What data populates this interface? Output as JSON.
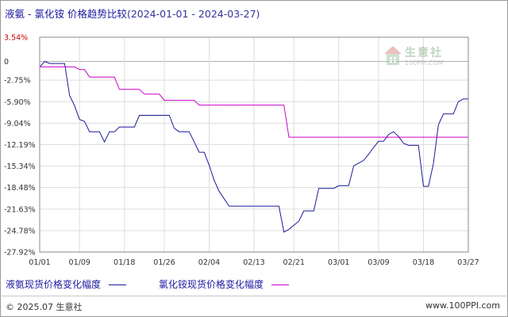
{
  "title": {
    "main": "液氨 - 氯化铵 价格趋势比较",
    "range": "(2024-01-01 - 2024-03-27)"
  },
  "watermark": {
    "text": "生意社",
    "url": "100PPI.COM"
  },
  "footer": {
    "copyright": "© 2025.07 生意社",
    "website": "www.100PPI.com"
  },
  "colors": {
    "series1": "#1a1a9c",
    "series2": "#cc00cc",
    "title": "#1a1aa0",
    "top_tick": "#cc0000"
  },
  "chart_data": {
    "type": "line",
    "title": "液氨 - 氯化铵 价格趋势比较(2024-01-01 - 2024-03-27)",
    "xlabel": "",
    "ylabel": "",
    "x_range": [
      "2024-01-01",
      "2024-03-27"
    ],
    "x_ticks": [
      {
        "date": "2024-01-01",
        "label": "01/01"
      },
      {
        "date": "2024-01-09",
        "label": "01/09"
      },
      {
        "date": "2024-01-18",
        "label": "01/18"
      },
      {
        "date": "2024-01-26",
        "label": "01/26"
      },
      {
        "date": "2024-02-04",
        "label": "02/04"
      },
      {
        "date": "2024-02-13",
        "label": "02/13"
      },
      {
        "date": "2024-02-21",
        "label": "02/21"
      },
      {
        "date": "2024-03-01",
        "label": "03/01"
      },
      {
        "date": "2024-03-09",
        "label": "03/09"
      },
      {
        "date": "2024-03-18",
        "label": "03/18"
      },
      {
        "date": "2024-03-27",
        "label": "03/27"
      }
    ],
    "y_ticks": [
      {
        "value": 3.54,
        "label": "3.54%"
      },
      {
        "value": 0,
        "label": "0"
      },
      {
        "value": -2.75,
        "label": "-2.75%"
      },
      {
        "value": -5.9,
        "label": "-5.90%"
      },
      {
        "value": -9.04,
        "label": "-9.04%"
      },
      {
        "value": -12.19,
        "label": "-12.19%"
      },
      {
        "value": -15.34,
        "label": "-15.34%"
      },
      {
        "value": -18.48,
        "label": "-18.48%"
      },
      {
        "value": -21.63,
        "label": "-21.63%"
      },
      {
        "value": -24.78,
        "label": "-24.78%"
      },
      {
        "value": -27.92,
        "label": "-27.92%"
      }
    ],
    "ylim": [
      -27.92,
      3.54
    ],
    "grid": true,
    "legend_position": "bottom",
    "series": [
      {
        "name": "液氨现货价格变化幅度",
        "color": "#1a1a9c",
        "points": [
          [
            "2024-01-01",
            -0.8
          ],
          [
            "2024-01-02",
            0.0
          ],
          [
            "2024-01-03",
            -0.3
          ],
          [
            "2024-01-05",
            -0.3
          ],
          [
            "2024-01-06",
            -0.3
          ],
          [
            "2024-01-07",
            -5.0
          ],
          [
            "2024-01-08",
            -6.5
          ],
          [
            "2024-01-09",
            -8.5
          ],
          [
            "2024-01-10",
            -8.8
          ],
          [
            "2024-01-11",
            -10.3
          ],
          [
            "2024-01-13",
            -10.3
          ],
          [
            "2024-01-14",
            -11.8
          ],
          [
            "2024-01-15",
            -10.3
          ],
          [
            "2024-01-16",
            -10.3
          ],
          [
            "2024-01-17",
            -9.6
          ],
          [
            "2024-01-20",
            -9.6
          ],
          [
            "2024-01-21",
            -7.9
          ],
          [
            "2024-01-27",
            -7.9
          ],
          [
            "2024-01-28",
            -9.8
          ],
          [
            "2024-01-29",
            -10.3
          ],
          [
            "2024-01-31",
            -10.3
          ],
          [
            "2024-02-02",
            -13.3
          ],
          [
            "2024-02-03",
            -13.3
          ],
          [
            "2024-02-04",
            -15.2
          ],
          [
            "2024-02-05",
            -17.4
          ],
          [
            "2024-02-06",
            -19.0
          ],
          [
            "2024-02-08",
            -21.2
          ],
          [
            "2024-02-18",
            -21.2
          ],
          [
            "2024-02-19",
            -25.0
          ],
          [
            "2024-02-20",
            -24.6
          ],
          [
            "2024-02-21",
            -24.0
          ],
          [
            "2024-02-22",
            -23.4
          ],
          [
            "2024-02-23",
            -21.9
          ],
          [
            "2024-02-25",
            -21.9
          ],
          [
            "2024-02-26",
            -18.6
          ],
          [
            "2024-02-29",
            -18.6
          ],
          [
            "2024-03-01",
            -18.2
          ],
          [
            "2024-03-03",
            -18.2
          ],
          [
            "2024-03-04",
            -15.3
          ],
          [
            "2024-03-05",
            -14.9
          ],
          [
            "2024-03-06",
            -14.5
          ],
          [
            "2024-03-07",
            -13.6
          ],
          [
            "2024-03-08",
            -12.6
          ],
          [
            "2024-03-09",
            -11.7
          ],
          [
            "2024-03-10",
            -11.7
          ],
          [
            "2024-03-11",
            -10.7
          ],
          [
            "2024-03-12",
            -10.3
          ],
          [
            "2024-03-13",
            -11.0
          ],
          [
            "2024-03-14",
            -12.0
          ],
          [
            "2024-03-15",
            -12.3
          ],
          [
            "2024-03-17",
            -12.3
          ],
          [
            "2024-03-18",
            -18.3
          ],
          [
            "2024-03-19",
            -18.3
          ],
          [
            "2024-03-20",
            -15.0
          ],
          [
            "2024-03-21",
            -9.3
          ],
          [
            "2024-03-22",
            -7.7
          ],
          [
            "2024-03-24",
            -7.7
          ],
          [
            "2024-03-25",
            -5.9
          ],
          [
            "2024-03-26",
            -5.5
          ],
          [
            "2024-03-27",
            -5.5
          ]
        ]
      },
      {
        "name": "氯化铵现货价格变化幅度",
        "color": "#cc00cc",
        "points": [
          [
            "2024-01-01",
            -0.8
          ],
          [
            "2024-01-08",
            -0.8
          ],
          [
            "2024-01-09",
            -1.2
          ],
          [
            "2024-01-10",
            -1.2
          ],
          [
            "2024-01-11",
            -2.3
          ],
          [
            "2024-01-16",
            -2.3
          ],
          [
            "2024-01-17",
            -4.1
          ],
          [
            "2024-01-21",
            -4.1
          ],
          [
            "2024-01-22",
            -4.8
          ],
          [
            "2024-01-25",
            -4.8
          ],
          [
            "2024-01-26",
            -5.7
          ],
          [
            "2024-02-01",
            -5.7
          ],
          [
            "2024-02-02",
            -6.4
          ],
          [
            "2024-02-19",
            -6.4
          ],
          [
            "2024-02-20",
            -11.1
          ],
          [
            "2024-03-27",
            -11.1
          ]
        ]
      }
    ]
  }
}
